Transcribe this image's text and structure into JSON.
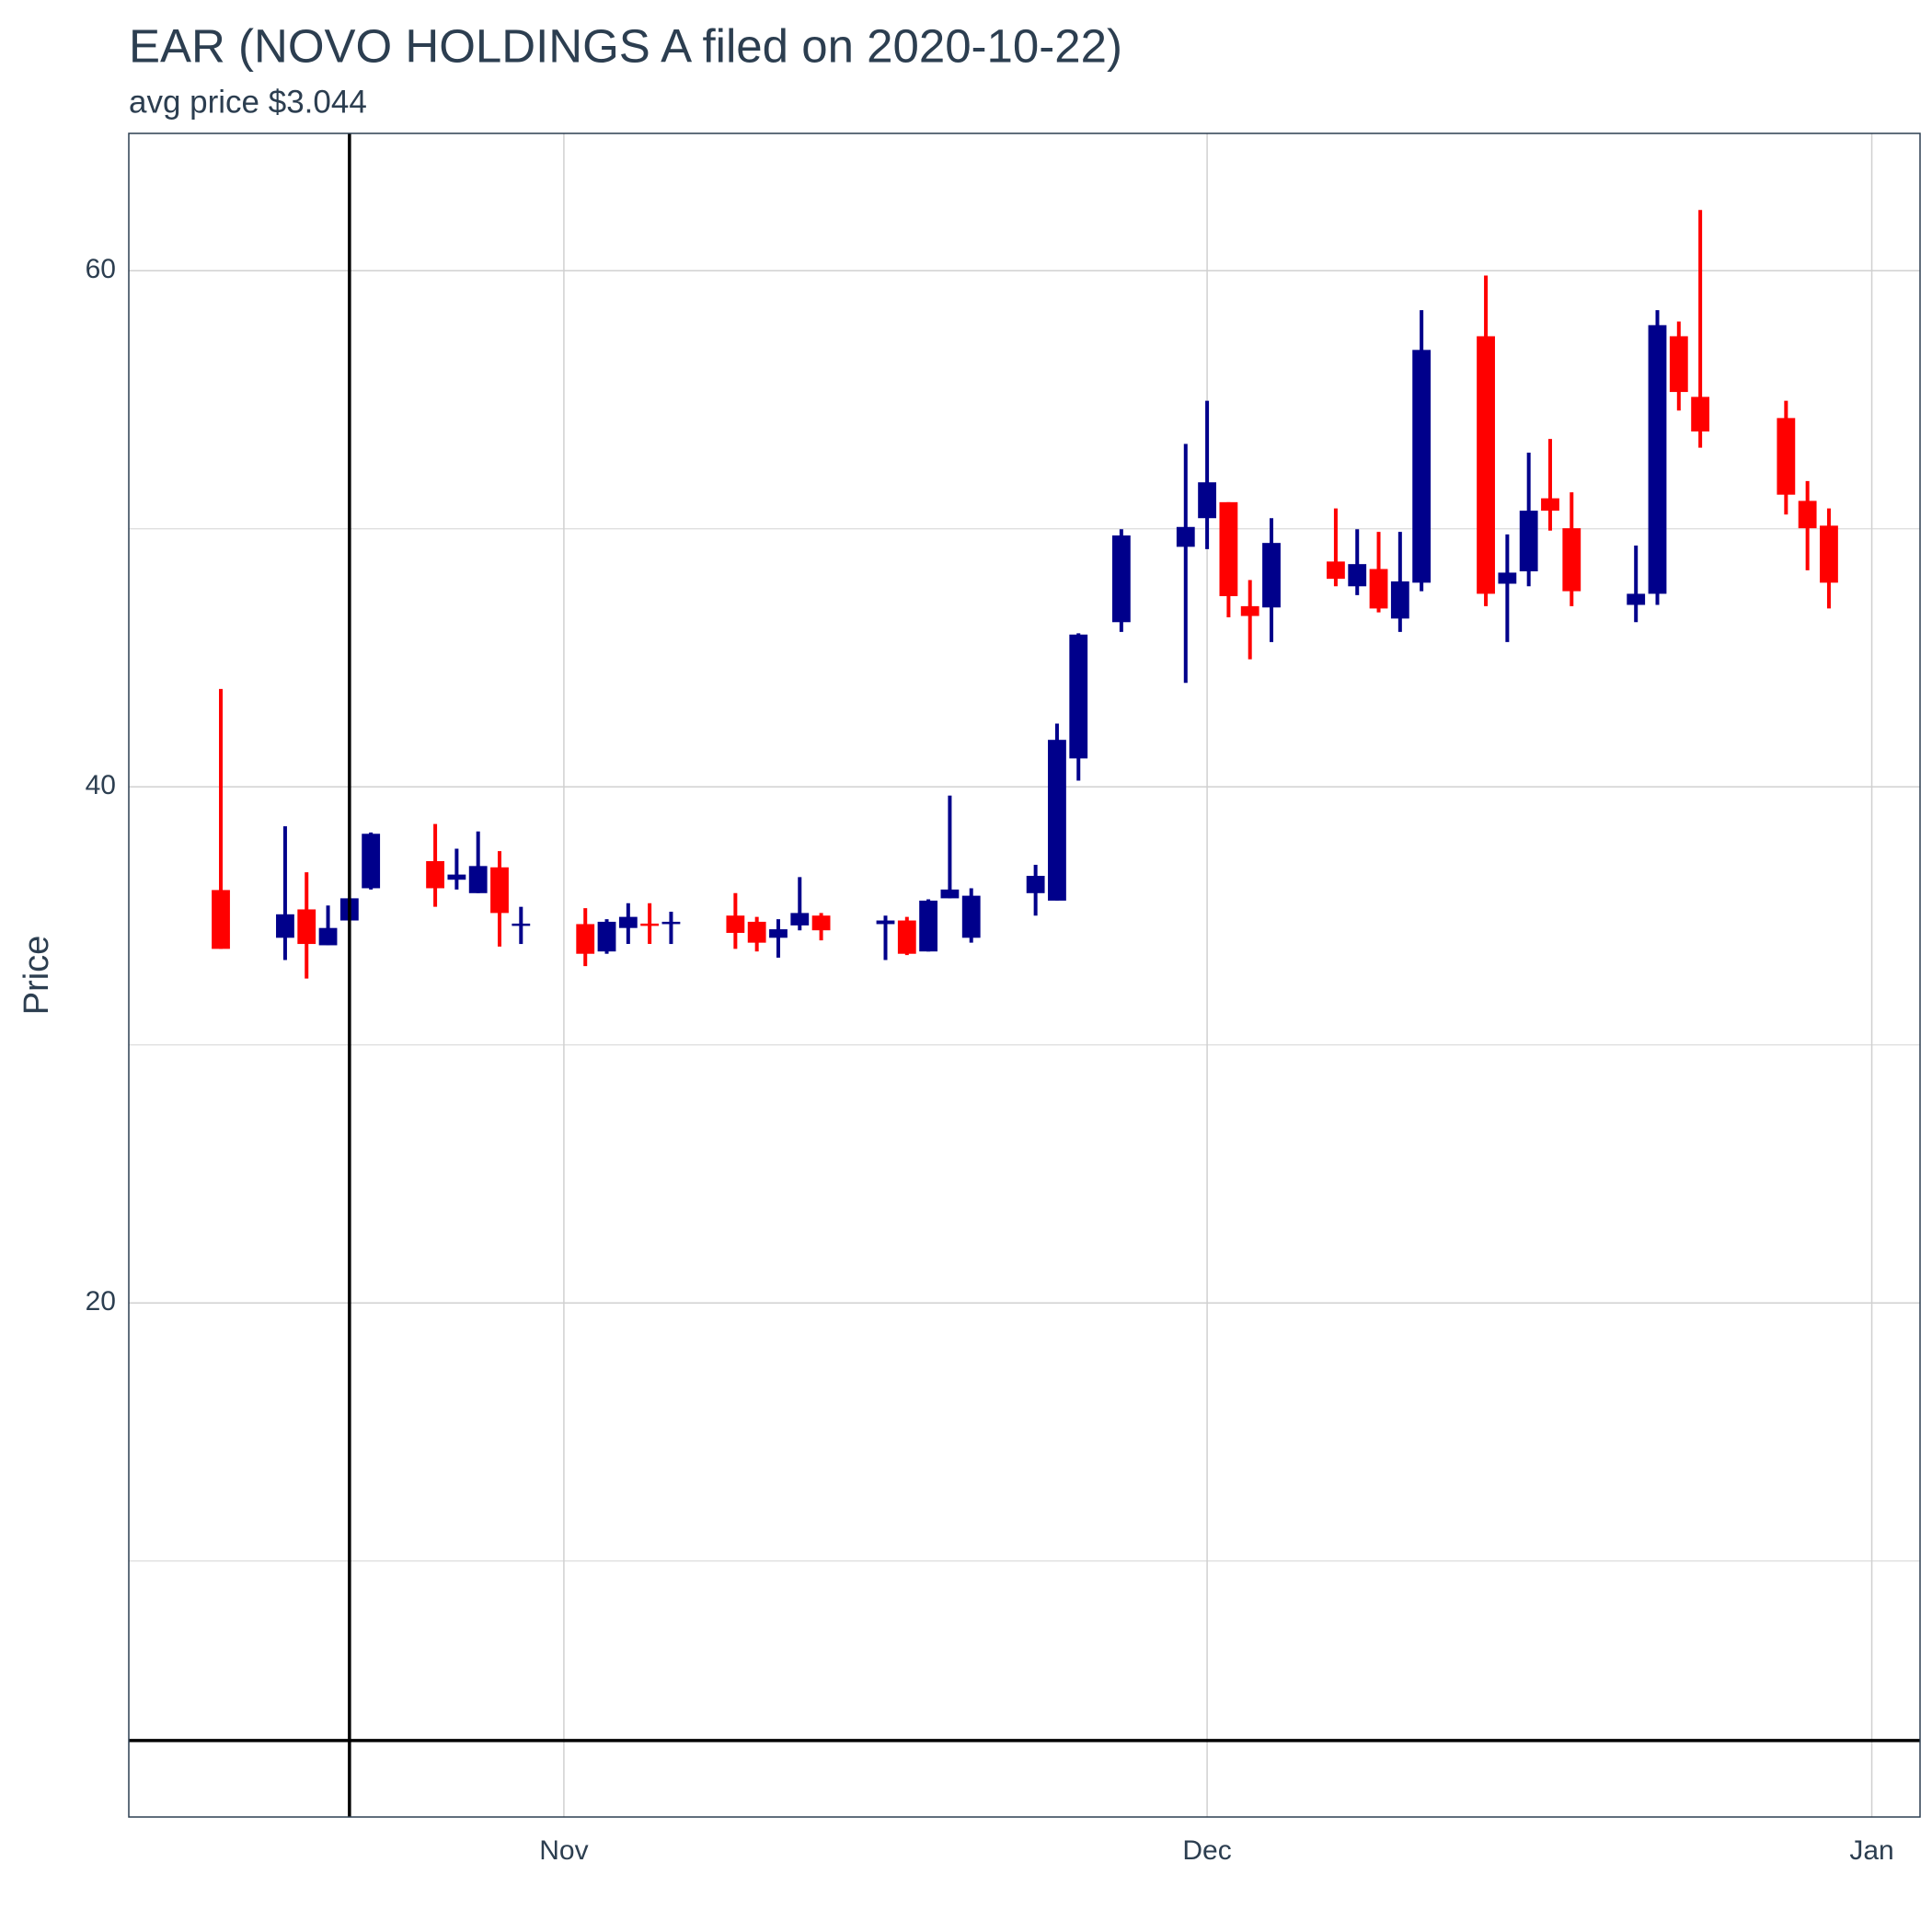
{
  "chart_data": {
    "type": "candlestick",
    "title": "EAR (NOVO HOLDINGS A filed on 2020-10-22)",
    "subtitle": "avg price $3.044",
    "y_label": "Price",
    "x": [
      "2020-10-16",
      "2020-10-19",
      "2020-10-20",
      "2020-10-21",
      "2020-10-22",
      "2020-10-23",
      "2020-10-26",
      "2020-10-27",
      "2020-10-28",
      "2020-10-29",
      "2020-10-30",
      "2020-11-02",
      "2020-11-03",
      "2020-11-04",
      "2020-11-05",
      "2020-11-06",
      "2020-11-09",
      "2020-11-10",
      "2020-11-11",
      "2020-11-12",
      "2020-11-13",
      "2020-11-16",
      "2020-11-17",
      "2020-11-18",
      "2020-11-19",
      "2020-11-20",
      "2020-11-23",
      "2020-11-24",
      "2020-11-25",
      "2020-11-27",
      "2020-11-30",
      "2020-12-01",
      "2020-12-02",
      "2020-12-03",
      "2020-12-04",
      "2020-12-07",
      "2020-12-08",
      "2020-12-09",
      "2020-12-10",
      "2020-12-11",
      "2020-12-14",
      "2020-12-15",
      "2020-12-16",
      "2020-12-17",
      "2020-12-18",
      "2020-12-21",
      "2020-12-22",
      "2020-12-23",
      "2020-12-24",
      "2020-12-28",
      "2020-12-29",
      "2020-12-30"
    ],
    "open": [
      36.0,
      34.15,
      35.25,
      33.86,
      34.82,
      36.07,
      37.12,
      36.4,
      35.88,
      36.88,
      34.68,
      34.68,
      33.62,
      34.53,
      34.7,
      34.68,
      35.01,
      34.77,
      34.15,
      34.63,
      35.01,
      34.68,
      34.82,
      33.62,
      35.68,
      34.15,
      35.88,
      35.59,
      41.1,
      46.38,
      49.3,
      50.41,
      51.03,
      47.0,
      46.95,
      48.73,
      47.77,
      48.44,
      46.52,
      47.91,
      57.46,
      47.87,
      48.35,
      51.18,
      50.02,
      47.05,
      47.48,
      57.46,
      55.11,
      54.29,
      51.08,
      50.12
    ],
    "high": [
      43.79,
      38.47,
      36.69,
      35.4,
      35.68,
      38.23,
      38.56,
      37.6,
      38.27,
      37.51,
      35.35,
      35.3,
      34.87,
      35.49,
      35.49,
      35.16,
      35.88,
      34.96,
      34.87,
      36.5,
      35.11,
      35.01,
      34.96,
      35.64,
      39.66,
      36.07,
      36.98,
      42.45,
      45.95,
      49.98,
      53.29,
      54.96,
      51.03,
      48.01,
      50.41,
      50.79,
      49.98,
      49.88,
      49.88,
      58.47,
      59.81,
      49.78,
      52.95,
      53.48,
      51.41,
      49.35,
      58.47,
      58.03,
      62.35,
      54.96,
      51.85,
      50.79
    ],
    "low": [
      33.72,
      33.29,
      32.57,
      33.86,
      34.82,
      36.02,
      35.35,
      36.02,
      35.88,
      33.81,
      33.91,
      33.05,
      33.53,
      33.91,
      33.91,
      33.91,
      33.72,
      33.62,
      33.38,
      34.44,
      34.05,
      33.29,
      33.48,
      33.62,
      35.68,
      33.96,
      35.01,
      35.59,
      40.24,
      46.0,
      44.03,
      49.21,
      46.57,
      44.94,
      45.61,
      47.77,
      47.43,
      46.76,
      46.0,
      47.58,
      47.0,
      45.61,
      47.77,
      49.93,
      47.0,
      46.38,
      47.05,
      54.58,
      53.14,
      50.55,
      48.39,
      46.91
    ],
    "close": [
      33.72,
      35.06,
      33.91,
      34.53,
      35.68,
      38.18,
      36.07,
      36.6,
      36.93,
      35.11,
      34.7,
      33.53,
      34.77,
      34.96,
      34.65,
      34.77,
      34.34,
      33.96,
      34.48,
      35.11,
      34.44,
      34.82,
      33.53,
      35.59,
      36.02,
      35.78,
      36.55,
      41.82,
      45.9,
      49.74,
      50.07,
      51.8,
      47.39,
      46.62,
      49.45,
      48.06,
      48.63,
      46.91,
      47.96,
      56.93,
      47.48,
      48.3,
      50.7,
      50.7,
      47.58,
      47.48,
      57.89,
      55.3,
      53.77,
      51.32,
      50.02,
      47.91
    ],
    "increasing_color": "#00008b",
    "decreasing_color": "#ff0000",
    "xlim": [
      "2020-10-11T17:00:00Z",
      "2021-01-03T06:00:00Z"
    ],
    "xticks": [
      {
        "value": "2020-11-01",
        "label": "Nov"
      },
      {
        "value": "2020-12-01",
        "label": "Dec"
      },
      {
        "value": "2021-01-01",
        "label": "Jan"
      }
    ],
    "ylim": [
      0.08,
      65.32
    ],
    "yticks": [
      20,
      40,
      60
    ],
    "minor_yticks": [
      10,
      30,
      50
    ],
    "grid": true,
    "vline": "2020-10-22",
    "hline": 3.044
  }
}
